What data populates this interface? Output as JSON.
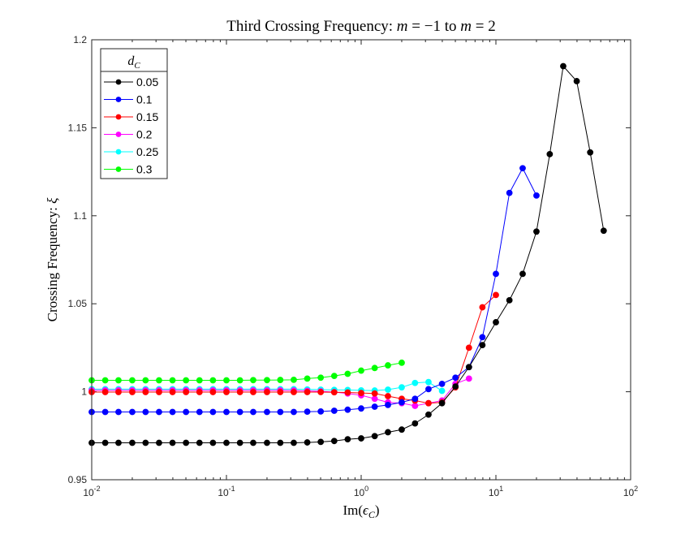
{
  "chart_data": {
    "type": "line",
    "title_prefix": "Third Crossing Frequency: ",
    "title_math": [
      "m",
      " = −1 to ",
      "m",
      " = 2"
    ],
    "xlabel": [
      "Im(",
      "ϵ",
      "C",
      ")"
    ],
    "ylabel": [
      "Crossing Frequency: ",
      "ξ"
    ],
    "x_scale": "log",
    "xlim": [
      0.01,
      100
    ],
    "ylim": [
      0.95,
      1.2
    ],
    "x_ticks": [
      {
        "base": "10",
        "exp": "-2"
      },
      {
        "base": "10",
        "exp": "-1"
      },
      {
        "base": "10",
        "exp": "0"
      },
      {
        "base": "10",
        "exp": "1"
      },
      {
        "base": "10",
        "exp": "2"
      }
    ],
    "y_ticks": [
      "0.95",
      "1",
      "1.05",
      "1.1",
      "1.15",
      "1.2"
    ],
    "legend_title": [
      "d",
      "C"
    ],
    "legend_position": "top-left",
    "series": [
      {
        "name": "0.05",
        "color": "#000000",
        "x": [
          0.01,
          0.0126,
          0.0158,
          0.02,
          0.0251,
          0.0316,
          0.0398,
          0.0501,
          0.0631,
          0.0794,
          0.1,
          0.126,
          0.158,
          0.2,
          0.251,
          0.316,
          0.398,
          0.501,
          0.631,
          0.794,
          1.0,
          1.26,
          1.58,
          2.0,
          2.51,
          3.16,
          3.98,
          5.01,
          6.31,
          7.94,
          10.0,
          12.6,
          15.8,
          20.0,
          25.1,
          31.6,
          39.8,
          50.1,
          63.1
        ],
        "y": [
          0.971,
          0.971,
          0.971,
          0.971,
          0.971,
          0.971,
          0.971,
          0.971,
          0.971,
          0.971,
          0.971,
          0.971,
          0.971,
          0.971,
          0.971,
          0.971,
          0.9712,
          0.9715,
          0.972,
          0.973,
          0.9735,
          0.9748,
          0.977,
          0.9785,
          0.982,
          0.987,
          0.9935,
          1.003,
          1.014,
          1.0265,
          1.0395,
          1.052,
          1.067,
          1.091,
          1.135,
          1.185,
          1.1765,
          1.136,
          1.0915
        ]
      },
      {
        "name": "0.1",
        "color": "#0000ff",
        "x": [
          0.01,
          0.0126,
          0.0158,
          0.02,
          0.0251,
          0.0316,
          0.0398,
          0.0501,
          0.0631,
          0.0794,
          0.1,
          0.126,
          0.158,
          0.2,
          0.251,
          0.316,
          0.398,
          0.501,
          0.631,
          0.794,
          1.0,
          1.26,
          1.58,
          2.0,
          2.51,
          3.16,
          3.98,
          5.01,
          6.31,
          7.94,
          10.0,
          12.6,
          15.8,
          20.0
        ],
        "y": [
          0.9885,
          0.9885,
          0.9885,
          0.9885,
          0.9885,
          0.9885,
          0.9885,
          0.9885,
          0.9885,
          0.9885,
          0.9885,
          0.9885,
          0.9885,
          0.9885,
          0.9885,
          0.9885,
          0.9887,
          0.9888,
          0.9892,
          0.9898,
          0.9905,
          0.9915,
          0.9925,
          0.994,
          0.996,
          1.0015,
          1.0045,
          1.008,
          1.014,
          1.031,
          1.067,
          1.113,
          1.127,
          1.1115
        ]
      },
      {
        "name": "0.15",
        "color": "#ff0000",
        "x": [
          0.01,
          0.0126,
          0.0158,
          0.02,
          0.0251,
          0.0316,
          0.0398,
          0.0501,
          0.0631,
          0.0794,
          0.1,
          0.126,
          0.158,
          0.2,
          0.251,
          0.316,
          0.398,
          0.501,
          0.631,
          0.794,
          1.0,
          1.26,
          1.58,
          2.0,
          2.51,
          3.16,
          3.98,
          5.01,
          6.31,
          7.94,
          10.0
        ],
        "y": [
          0.9998,
          0.9998,
          0.9998,
          0.9998,
          0.9998,
          0.9998,
          0.9998,
          0.9998,
          0.9998,
          0.9998,
          0.9998,
          0.9998,
          0.9998,
          0.9998,
          0.9998,
          0.9998,
          0.9998,
          0.9998,
          0.9997,
          0.9996,
          0.9993,
          0.999,
          0.9975,
          0.996,
          0.995,
          0.9935,
          0.994,
          1.0025,
          1.025,
          1.048,
          1.055
        ]
      },
      {
        "name": "0.2",
        "color": "#ff00ff",
        "x": [
          0.01,
          0.0126,
          0.0158,
          0.02,
          0.0251,
          0.0316,
          0.0398,
          0.0501,
          0.0631,
          0.0794,
          0.1,
          0.126,
          0.158,
          0.2,
          0.251,
          0.316,
          0.398,
          0.501,
          0.631,
          0.794,
          1.0,
          1.26,
          1.58,
          2.0,
          2.51,
          3.16,
          3.98,
          5.01,
          6.31
        ],
        "y": [
          1.0008,
          1.0008,
          1.0008,
          1.0008,
          1.0008,
          1.0008,
          1.0008,
          1.0008,
          1.0008,
          1.0008,
          1.0008,
          1.0008,
          1.0008,
          1.0008,
          1.0008,
          1.0007,
          1.0005,
          1.0002,
          0.9998,
          0.999,
          0.998,
          0.996,
          0.994,
          0.9935,
          0.992,
          0.9935,
          0.995,
          1.0045,
          1.0075
        ]
      },
      {
        "name": "0.25",
        "color": "#00ffff",
        "x": [
          0.01,
          0.0126,
          0.0158,
          0.02,
          0.0251,
          0.0316,
          0.0398,
          0.0501,
          0.0631,
          0.0794,
          0.1,
          0.126,
          0.158,
          0.2,
          0.251,
          0.316,
          0.398,
          0.501,
          0.631,
          0.794,
          1.0,
          1.26,
          1.58,
          2.0,
          2.51,
          3.16,
          3.98
        ],
        "y": [
          1.0015,
          1.0015,
          1.0015,
          1.0015,
          1.0015,
          1.0015,
          1.0015,
          1.0015,
          1.0015,
          1.0015,
          1.0015,
          1.0015,
          1.0015,
          1.0015,
          1.0015,
          1.0015,
          1.0013,
          1.0012,
          1.0011,
          1.001,
          1.0008,
          1.0007,
          1.0012,
          1.0025,
          1.005,
          1.0055,
          1.0005
        ]
      },
      {
        "name": "0.3",
        "color": "#00ff00",
        "x": [
          0.01,
          0.0126,
          0.0158,
          0.02,
          0.0251,
          0.0316,
          0.0398,
          0.0501,
          0.0631,
          0.0794,
          0.1,
          0.126,
          0.158,
          0.2,
          0.251,
          0.316,
          0.398,
          0.501,
          0.631,
          0.794,
          1.0,
          1.26,
          1.58,
          2.0
        ],
        "y": [
          1.0065,
          1.0065,
          1.0065,
          1.0065,
          1.0065,
          1.0065,
          1.0065,
          1.0065,
          1.0065,
          1.0065,
          1.0065,
          1.0065,
          1.0066,
          1.0066,
          1.0067,
          1.0068,
          1.0075,
          1.008,
          1.009,
          1.0102,
          1.012,
          1.0135,
          1.015,
          1.0165
        ]
      }
    ]
  }
}
